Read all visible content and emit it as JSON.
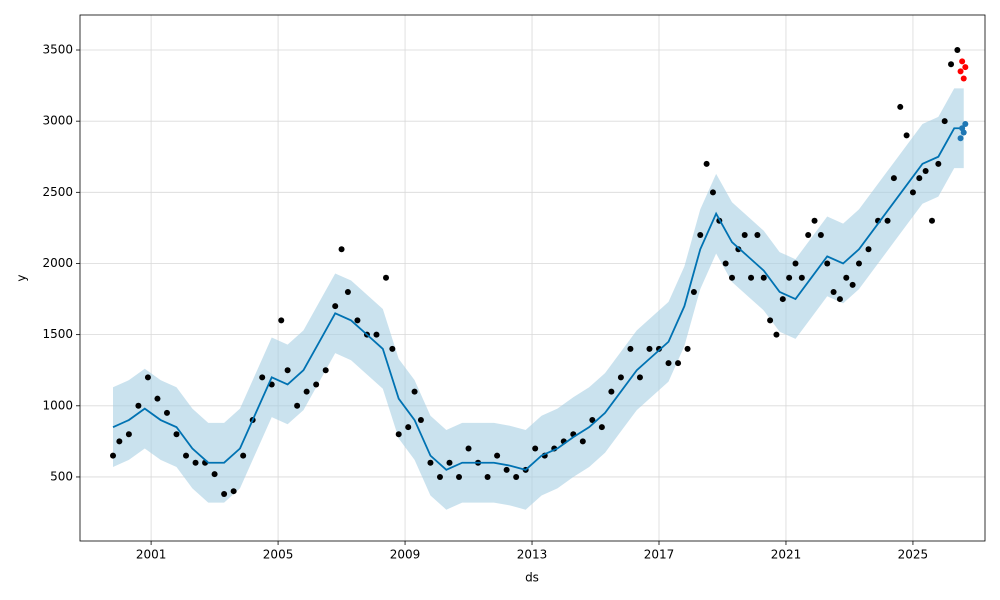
{
  "chart_data": {
    "type": "line",
    "x_label": "ds",
    "y_label": "y",
    "xlim": [
      1998.76,
      2027.27
    ],
    "ylim": [
      50,
      3746
    ],
    "xticks": [
      2001,
      2005,
      2009,
      2013,
      2017,
      2021,
      2025
    ],
    "yticks": [
      500,
      1000,
      1500,
      2000,
      2500,
      3000,
      3500
    ],
    "grid": true,
    "series": [
      {
        "type": "band",
        "color": "#a6cee3",
        "x": [
          1999.8,
          2000.3,
          2000.8,
          2001.3,
          2001.8,
          2002.3,
          2002.8,
          2003.3,
          2003.8,
          2004.3,
          2004.8,
          2005.3,
          2005.8,
          2006.3,
          2006.8,
          2007.3,
          2007.8,
          2008.3,
          2008.8,
          2009.3,
          2009.8,
          2010.3,
          2010.8,
          2011.3,
          2011.8,
          2012.3,
          2012.8,
          2013.3,
          2013.8,
          2014.3,
          2014.8,
          2015.3,
          2015.8,
          2016.3,
          2016.8,
          2017.3,
          2017.8,
          2018.3,
          2018.8,
          2019.3,
          2019.8,
          2020.3,
          2020.8,
          2021.3,
          2021.8,
          2022.3,
          2022.8,
          2023.3,
          2023.8,
          2024.3,
          2024.8,
          2025.3,
          2025.8,
          2026.3,
          2026.6
        ],
        "lower": [
          570,
          620,
          700,
          620,
          570,
          420,
          320,
          320,
          420,
          670,
          920,
          870,
          970,
          1170,
          1370,
          1320,
          1220,
          1120,
          770,
          620,
          370,
          270,
          320,
          320,
          320,
          300,
          270,
          370,
          420,
          500,
          570,
          670,
          820,
          970,
          1070,
          1170,
          1420,
          1820,
          2070,
          1870,
          1770,
          1670,
          1520,
          1470,
          1620,
          1770,
          1720,
          1820,
          1970,
          2120,
          2270,
          2420,
          2470,
          2670,
          2670
        ],
        "upper": [
          1130,
          1180,
          1260,
          1180,
          1130,
          980,
          880,
          880,
          980,
          1230,
          1480,
          1430,
          1530,
          1730,
          1930,
          1880,
          1780,
          1680,
          1330,
          1180,
          930,
          830,
          880,
          880,
          880,
          860,
          830,
          930,
          980,
          1060,
          1130,
          1230,
          1380,
          1530,
          1630,
          1730,
          1980,
          2380,
          2630,
          2430,
          2330,
          2230,
          2080,
          2030,
          2180,
          2330,
          2280,
          2380,
          2530,
          2680,
          2830,
          2980,
          3030,
          3230,
          3230
        ]
      },
      {
        "type": "scatter",
        "color": "#000000",
        "x": [
          1999.8,
          2000.0,
          2000.3,
          2000.6,
          2000.9,
          2001.2,
          2001.5,
          2001.8,
          2002.1,
          2002.4,
          2002.7,
          2003.0,
          2003.3,
          2003.6,
          2003.9,
          2004.2,
          2004.5,
          2004.8,
          2005.1,
          2005.3,
          2005.6,
          2005.9,
          2006.2,
          2006.5,
          2006.8,
          2007.0,
          2007.2,
          2007.5,
          2007.8,
          2008.1,
          2008.4,
          2008.6,
          2008.8,
          2009.1,
          2009.3,
          2009.5,
          2009.8,
          2010.1,
          2010.4,
          2010.7,
          2011.0,
          2011.3,
          2011.6,
          2011.9,
          2012.2,
          2012.5,
          2012.8,
          2013.1,
          2013.4,
          2013.7,
          2014.0,
          2014.3,
          2014.6,
          2014.9,
          2015.2,
          2015.5,
          2015.8,
          2016.1,
          2016.4,
          2016.7,
          2017.0,
          2017.3,
          2017.6,
          2017.9,
          2018.1,
          2018.3,
          2018.5,
          2018.7,
          2018.9,
          2019.1,
          2019.3,
          2019.5,
          2019.7,
          2019.9,
          2020.1,
          2020.3,
          2020.5,
          2020.7,
          2020.9,
          2021.1,
          2021.3,
          2021.5,
          2021.7,
          2021.9,
          2022.1,
          2022.3,
          2022.5,
          2022.7,
          2022.9,
          2023.1,
          2023.3,
          2023.6,
          2023.9,
          2024.2,
          2024.4,
          2024.6,
          2024.8,
          2025.0,
          2025.2,
          2025.4,
          2025.6,
          2025.8,
          2026.0,
          2026.2,
          2026.4
        ],
        "values": [
          650,
          750,
          800,
          1000,
          1200,
          1050,
          950,
          800,
          650,
          600,
          600,
          520,
          380,
          400,
          650,
          900,
          1200,
          1150,
          1600,
          1250,
          1000,
          1100,
          1150,
          1250,
          1700,
          2100,
          1800,
          1600,
          1500,
          1500,
          1900,
          1400,
          800,
          850,
          1100,
          900,
          600,
          500,
          600,
          500,
          700,
          600,
          500,
          650,
          550,
          500,
          550,
          700,
          650,
          700,
          750,
          800,
          750,
          900,
          850,
          1100,
          1200,
          1400,
          1200,
          1400,
          1400,
          1300,
          1300,
          1400,
          1800,
          2200,
          2700,
          2500,
          2300,
          2000,
          1900,
          2100,
          2200,
          1900,
          2200,
          1900,
          1600,
          1500,
          1750,
          1900,
          2000,
          1900,
          2200,
          2300,
          2200,
          2000,
          1800,
          1750,
          1900,
          1850,
          2000,
          2100,
          2300,
          2300,
          2600,
          3100,
          2900,
          2500,
          2600,
          2650,
          2300,
          2700,
          3000,
          3400,
          3500
        ]
      },
      {
        "type": "line",
        "color": "#0072b2",
        "x": [
          1999.8,
          2000.3,
          2000.8,
          2001.3,
          2001.8,
          2002.3,
          2002.8,
          2003.3,
          2003.8,
          2004.3,
          2004.8,
          2005.3,
          2005.8,
          2006.3,
          2006.8,
          2007.3,
          2007.8,
          2008.3,
          2008.8,
          2009.3,
          2009.8,
          2010.3,
          2010.8,
          2011.3,
          2011.8,
          2012.3,
          2012.8,
          2013.3,
          2013.8,
          2014.3,
          2014.8,
          2015.3,
          2015.8,
          2016.3,
          2016.8,
          2017.3,
          2017.8,
          2018.3,
          2018.8,
          2019.3,
          2019.8,
          2020.3,
          2020.8,
          2021.3,
          2021.8,
          2022.3,
          2022.8,
          2023.3,
          2023.8,
          2024.3,
          2024.8,
          2025.3,
          2025.8,
          2026.3,
          2026.6
        ],
        "values": [
          850,
          900,
          980,
          900,
          850,
          700,
          600,
          600,
          700,
          950,
          1200,
          1150,
          1250,
          1450,
          1650,
          1600,
          1500,
          1400,
          1050,
          900,
          650,
          550,
          600,
          600,
          600,
          580,
          550,
          650,
          700,
          780,
          850,
          950,
          1100,
          1250,
          1350,
          1450,
          1700,
          2100,
          2350,
          2150,
          2050,
          1950,
          1800,
          1750,
          1900,
          2050,
          2000,
          2100,
          2250,
          2400,
          2550,
          2700,
          2750,
          2950,
          2950
        ]
      },
      {
        "type": "scatter",
        "color": "#ff0000",
        "x": [
          2026.5,
          2026.55,
          2026.6,
          2026.65
        ],
        "values": [
          3350,
          3420,
          3300,
          3380
        ]
      },
      {
        "type": "scatter",
        "color": "#1f77b4",
        "x": [
          2026.5,
          2026.55,
          2026.6,
          2026.65
        ],
        "values": [
          2880,
          2950,
          2920,
          2980
        ]
      }
    ]
  }
}
